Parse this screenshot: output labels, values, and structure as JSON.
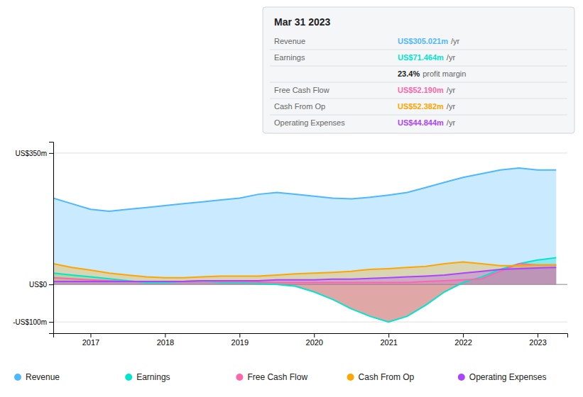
{
  "chart_data": {
    "type": "area",
    "title": "Mar 31 2023",
    "x": [
      2016.5,
      2016.75,
      2017.0,
      2017.25,
      2017.5,
      2017.75,
      2018.0,
      2018.25,
      2018.5,
      2018.75,
      2019.0,
      2019.25,
      2019.5,
      2019.75,
      2020.0,
      2020.25,
      2020.5,
      2020.75,
      2021.0,
      2021.25,
      2021.5,
      2021.75,
      2022.0,
      2022.25,
      2022.5,
      2022.75,
      2023.0,
      2023.25
    ],
    "series": [
      {
        "name": "Revenue",
        "color": "#4db8ff",
        "values": [
          230,
          215,
          200,
          195,
          200,
          205,
          210,
          215,
          220,
          225,
          230,
          240,
          245,
          240,
          235,
          230,
          228,
          232,
          238,
          245,
          258,
          272,
          285,
          295,
          305,
          310,
          305,
          305
        ]
      },
      {
        "name": "Earnings",
        "color": "#00e5cc",
        "values": [
          30,
          25,
          20,
          15,
          10,
          5,
          5,
          8,
          10,
          5,
          5,
          2,
          0,
          -5,
          -20,
          -40,
          -65,
          -85,
          -100,
          -85,
          -55,
          -20,
          5,
          20,
          40,
          55,
          65,
          71
        ]
      },
      {
        "name": "Free Cash Flow",
        "color": "#ff66aa",
        "values": [
          18,
          15,
          12,
          10,
          8,
          8,
          8,
          8,
          10,
          8,
          8,
          6,
          5,
          5,
          5,
          5,
          5,
          5,
          5,
          5,
          8,
          10,
          12,
          15,
          35,
          55,
          52,
          52
        ]
      },
      {
        "name": "Cash From Op",
        "color": "#ffa500",
        "values": [
          55,
          45,
          38,
          30,
          25,
          20,
          18,
          18,
          20,
          22,
          22,
          22,
          25,
          28,
          30,
          32,
          35,
          40,
          42,
          45,
          48,
          55,
          60,
          55,
          50,
          50,
          52,
          52
        ]
      },
      {
        "name": "Operating Expenses",
        "color": "#aa44ff",
        "values": [
          8,
          8,
          8,
          8,
          8,
          8,
          8,
          8,
          10,
          10,
          10,
          10,
          12,
          12,
          12,
          14,
          14,
          16,
          18,
          20,
          22,
          25,
          30,
          35,
          40,
          42,
          44,
          45
        ]
      }
    ],
    "xlim": [
      2016.5,
      2023.4
    ],
    "xticks": [
      2017,
      2018,
      2019,
      2020,
      2021,
      2022,
      2023
    ],
    "ylim": [
      -130,
      380
    ],
    "yticks": [
      {
        "value": 350,
        "label": "US$350m"
      },
      {
        "value": 0,
        "label": "US$0"
      },
      {
        "value": -100,
        "label": "-US$100m"
      }
    ],
    "grid": true,
    "annotations": [
      {
        "label": "Revenue",
        "text": "US$305.021m",
        "suffix": "/yr",
        "color": "#4db8ff"
      },
      {
        "label": "Earnings",
        "text": "US$71.464m",
        "suffix": "/yr",
        "color": "#00e5cc"
      },
      {
        "text": "23.4%",
        "suffix": "profit margin"
      },
      {
        "label": "Free Cash Flow",
        "text": "US$52.190m",
        "suffix": "/yr",
        "color": "#ff66aa"
      },
      {
        "label": "Cash From Op",
        "text": "US$52.382m",
        "suffix": "/yr",
        "color": "#ffa500"
      },
      {
        "label": "Operating Expenses",
        "text": "US$44.844m",
        "suffix": "/yr",
        "color": "#aa44ff"
      }
    ]
  }
}
